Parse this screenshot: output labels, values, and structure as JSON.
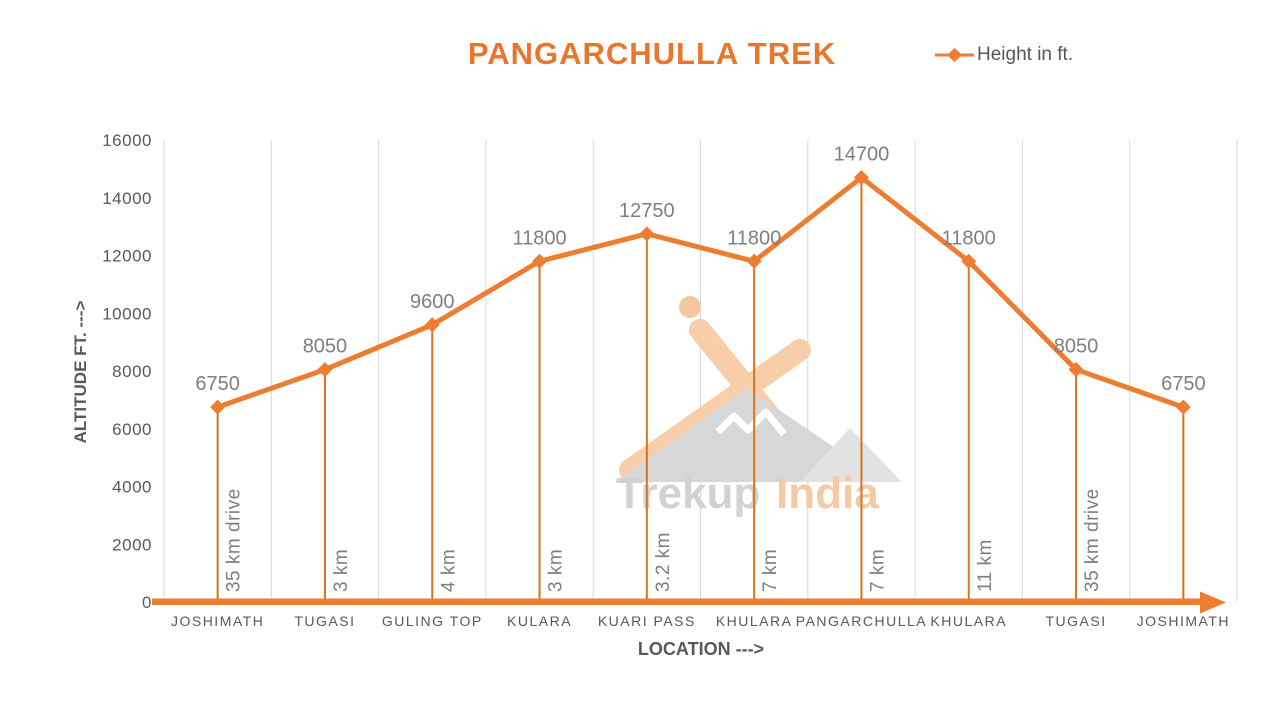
{
  "title": "PANGARCHULLA TREK",
  "legend": {
    "label": "Height in ft."
  },
  "watermark": {
    "brand_primary": "Trekup",
    "brand_secondary": "India"
  },
  "chart_data": {
    "type": "line",
    "title": "PANGARCHULLA TREK",
    "series_name": "Height in ft.",
    "categories": [
      "JOSHIMATH",
      "TUGASI",
      "GULING TOP",
      "KULARA",
      "KUARI PASS",
      "KHULARA",
      "PANGARCHULLA",
      "KHULARA",
      "TUGASI",
      "JOSHIMATH"
    ],
    "values": [
      6750,
      8050,
      9600,
      11800,
      12750,
      11800,
      14700,
      11800,
      8050,
      6750
    ],
    "segment_labels": [
      "35 km drive",
      "3 km",
      "4 km",
      "3 km",
      "3.2 km",
      "7 km",
      "7 km",
      "11 km",
      "35 km drive",
      ""
    ],
    "xlabel": "LOCATION --->",
    "ylabel": "ALTITUDE FT. --->",
    "ylim": [
      0,
      16000
    ],
    "ytick_step": 2000,
    "grid": "vertical-only",
    "legend_position": "top-right",
    "marker": "diamond",
    "colors": {
      "accent": "#ED7D31",
      "drop_line": "#D9731F",
      "data_label": "#7F7F7F",
      "axis_text": "#595959",
      "gridline": "#D9D9D9"
    }
  }
}
